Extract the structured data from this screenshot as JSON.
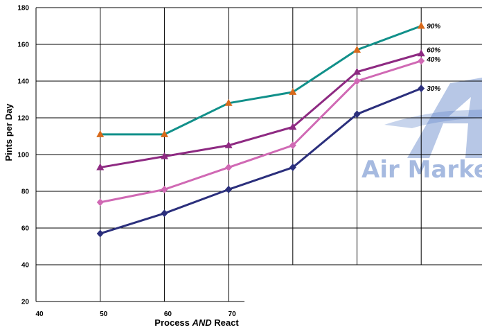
{
  "chart_data": {
    "type": "line",
    "xlabel_parts": [
      "Process ",
      "AND",
      " React"
    ],
    "ylabel": "Pints per Day",
    "xlim": [
      40,
      90
    ],
    "ylim": [
      20,
      180
    ],
    "x_ticks": [
      40,
      50,
      60,
      70
    ],
    "y_ticks": [
      20,
      40,
      60,
      80,
      100,
      120,
      140,
      160,
      180
    ],
    "x_grid": [
      50,
      60,
      70,
      80,
      90,
      100,
      110
    ],
    "x": [
      50,
      60,
      70,
      80,
      90,
      100
    ],
    "series": [
      {
        "name": "90%",
        "values": [
          111,
          111,
          128,
          134,
          157,
          170
        ],
        "line_color": "#11908a",
        "marker_color": "#d8691a",
        "marker": "triangle"
      },
      {
        "name": "60%",
        "values": [
          93,
          99,
          105,
          115,
          145,
          155
        ],
        "line_color": "#8e2a82",
        "marker_color": "#8e2a82",
        "marker": "triangle"
      },
      {
        "name": "40%",
        "values": [
          74,
          81,
          93,
          105,
          140,
          151
        ],
        "line_color": "#d069b4",
        "marker_color": "#d069b4",
        "marker": "diamond"
      },
      {
        "name": "30%",
        "values": [
          57,
          68,
          81,
          93,
          122,
          136
        ],
        "line_color": "#2b2f7c",
        "marker_color": "#2b2f7c",
        "marker": "diamond"
      }
    ],
    "grid": true,
    "legend": "inline labels at line ends"
  },
  "watermark": {
    "text": "Air Marke",
    "color": "#5f83c8"
  }
}
